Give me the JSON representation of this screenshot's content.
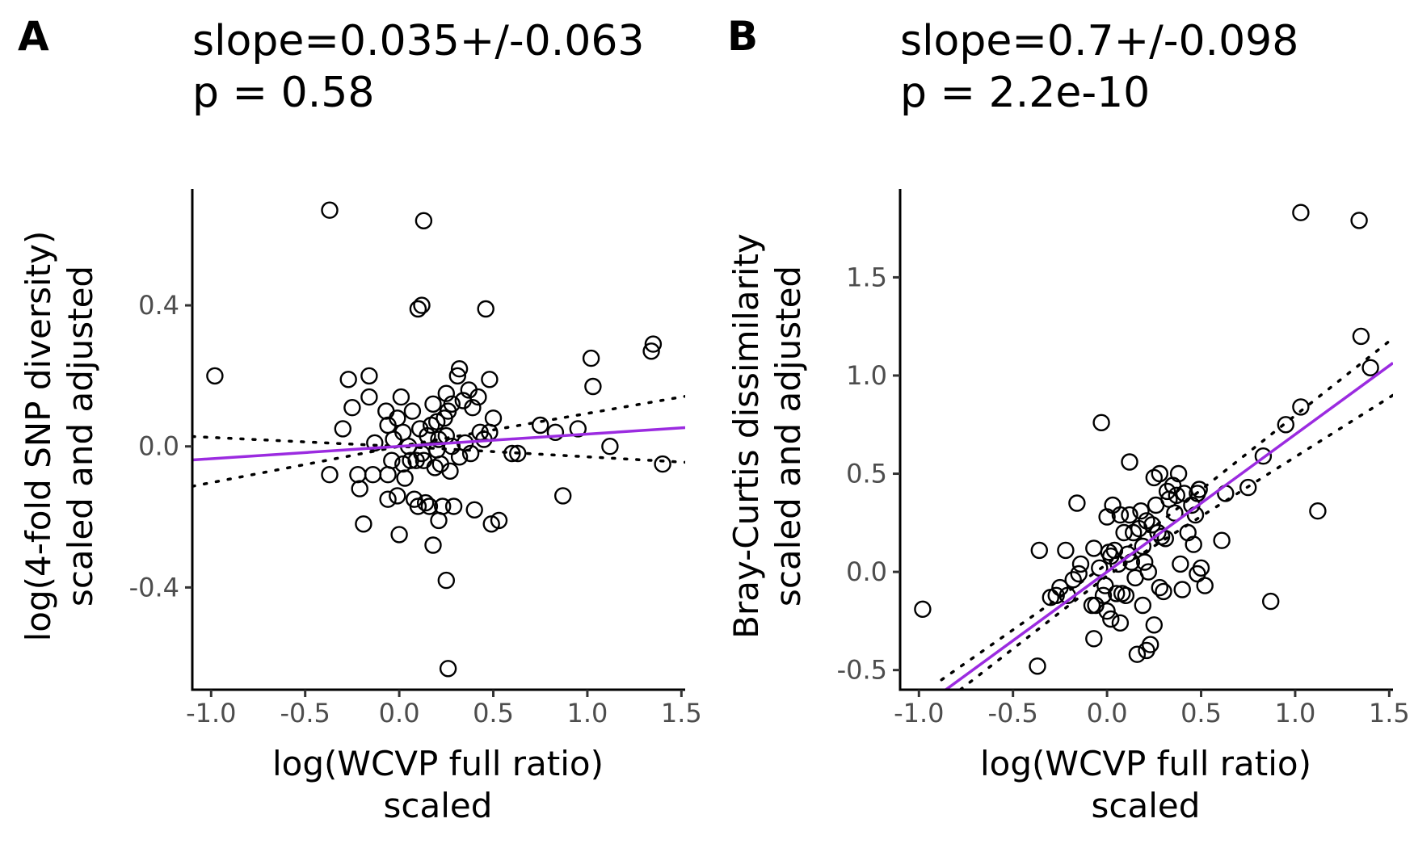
{
  "colors": {
    "fit": "#9b2be0",
    "points": "#000000",
    "ci": "#000000"
  },
  "chart_data": [
    {
      "type": "scatter",
      "panel": "A",
      "title_lines": [
        "slope=0.035+/-0.063",
        "p = 0.58"
      ],
      "xlabel_lines": [
        "log(WCVP full ratio)",
        "scaled"
      ],
      "ylabel_lines": [
        "log(4-fold SNP diversity)",
        "scaled and adjusted"
      ],
      "xlim": [
        -1.1,
        1.52
      ],
      "ylim": [
        -0.69,
        0.73
      ],
      "xticks": [
        -1.0,
        -0.5,
        0.0,
        0.5,
        1.0,
        1.5
      ],
      "xtick_labels": [
        "-1.0",
        "-0.5",
        "0.0",
        "0.5",
        "1.0",
        "1.5"
      ],
      "yticks": [
        -0.4,
        0.0,
        0.4
      ],
      "ytick_labels": [
        "-0.4",
        "0.0",
        "0.4"
      ],
      "grid": false,
      "fit": {
        "slope": 0.035,
        "intercept": 0.0
      },
      "ci": {
        "upper": [
          [
            -1.1,
            0.028
          ],
          [
            0.0,
            0.0
          ],
          [
            1.52,
            0.142
          ]
        ],
        "lower": [
          [
            -1.1,
            -0.113
          ],
          [
            0.0,
            0.0
          ],
          [
            1.52,
            -0.045
          ]
        ]
      },
      "points": [
        [
          -0.98,
          0.2
        ],
        [
          -0.37,
          0.67
        ],
        [
          -0.37,
          -0.08
        ],
        [
          -0.3,
          0.05
        ],
        [
          -0.27,
          0.19
        ],
        [
          -0.25,
          0.11
        ],
        [
          -0.22,
          -0.08
        ],
        [
          -0.21,
          -0.12
        ],
        [
          -0.19,
          -0.22
        ],
        [
          -0.16,
          0.2
        ],
        [
          -0.16,
          0.14
        ],
        [
          -0.14,
          -0.08
        ],
        [
          -0.13,
          0.01
        ],
        [
          -0.07,
          0.1
        ],
        [
          -0.06,
          0.06
        ],
        [
          -0.06,
          -0.08
        ],
        [
          -0.06,
          -0.15
        ],
        [
          -0.04,
          -0.04
        ],
        [
          -0.03,
          0.02
        ],
        [
          -0.01,
          0.08
        ],
        [
          -0.01,
          -0.14
        ],
        [
          0.0,
          -0.25
        ],
        [
          0.01,
          0.14
        ],
        [
          0.02,
          0.04
        ],
        [
          0.02,
          -0.05
        ],
        [
          0.03,
          -0.09
        ],
        [
          0.05,
          0.0
        ],
        [
          0.06,
          -0.04
        ],
        [
          0.07,
          0.1
        ],
        [
          0.08,
          -0.15
        ],
        [
          0.09,
          -0.04
        ],
        [
          0.1,
          0.39
        ],
        [
          0.1,
          -0.17
        ],
        [
          0.11,
          0.05
        ],
        [
          0.12,
          0.4
        ],
        [
          0.12,
          -0.02
        ],
        [
          0.13,
          0.64
        ],
        [
          0.13,
          -0.04
        ],
        [
          0.14,
          -0.16
        ],
        [
          0.15,
          0.03
        ],
        [
          0.16,
          -0.17
        ],
        [
          0.17,
          0.06
        ],
        [
          0.18,
          0.12
        ],
        [
          0.18,
          -0.28
        ],
        [
          0.19,
          -0.06
        ],
        [
          0.2,
          0.07
        ],
        [
          0.2,
          -0.01
        ],
        [
          0.21,
          0.02
        ],
        [
          0.21,
          -0.21
        ],
        [
          0.22,
          -0.05
        ],
        [
          0.23,
          -0.17
        ],
        [
          0.24,
          0.08
        ],
        [
          0.25,
          0.15
        ],
        [
          0.25,
          0.03
        ],
        [
          0.25,
          -0.38
        ],
        [
          0.26,
          -0.63
        ],
        [
          0.26,
          0.1
        ],
        [
          0.27,
          -0.07
        ],
        [
          0.28,
          0.12
        ],
        [
          0.28,
          0.0
        ],
        [
          0.29,
          -0.17
        ],
        [
          0.31,
          0.2
        ],
        [
          0.32,
          0.22
        ],
        [
          0.32,
          -0.03
        ],
        [
          0.34,
          0.13
        ],
        [
          0.35,
          0.01
        ],
        [
          0.37,
          0.16
        ],
        [
          0.38,
          -0.02
        ],
        [
          0.39,
          0.11
        ],
        [
          0.4,
          -0.18
        ],
        [
          0.42,
          0.14
        ],
        [
          0.43,
          0.04
        ],
        [
          0.45,
          0.02
        ],
        [
          0.46,
          0.39
        ],
        [
          0.48,
          0.04
        ],
        [
          0.48,
          0.19
        ],
        [
          0.49,
          -0.22
        ],
        [
          0.5,
          0.08
        ],
        [
          0.53,
          -0.21
        ],
        [
          0.6,
          -0.02
        ],
        [
          0.63,
          -0.02
        ],
        [
          0.75,
          0.06
        ],
        [
          0.83,
          0.04
        ],
        [
          0.87,
          -0.14
        ],
        [
          0.95,
          0.05
        ],
        [
          1.02,
          0.25
        ],
        [
          1.03,
          0.17
        ],
        [
          1.12,
          0.0
        ],
        [
          1.34,
          0.27
        ],
        [
          1.35,
          0.29
        ],
        [
          1.4,
          -0.05
        ]
      ]
    },
    {
      "type": "scatter",
      "panel": "B",
      "title_lines": [
        "slope=0.7+/-0.098",
        "p = 2.2e-10"
      ],
      "xlabel_lines": [
        "log(WCVP full ratio)",
        "scaled"
      ],
      "ylabel_lines": [
        "Bray-Curtis dissimilarity",
        "scaled and adjusted"
      ],
      "xlim": [
        -1.1,
        1.52
      ],
      "ylim": [
        -0.6,
        1.95
      ],
      "xticks": [
        -1.0,
        -0.5,
        0.0,
        0.5,
        1.0,
        1.5
      ],
      "xtick_labels": [
        "-1.0",
        "-0.5",
        "0.0",
        "0.5",
        "1.0",
        "1.5"
      ],
      "yticks": [
        -0.5,
        0.0,
        0.5,
        1.0,
        1.5
      ],
      "ytick_labels": [
        "-0.5",
        "0.0",
        "0.5",
        "1.0",
        "1.5"
      ],
      "grid": false,
      "fit": {
        "slope": 0.7,
        "intercept": 0.0
      },
      "ci": {
        "upper": [
          [
            -0.88,
            -0.55
          ],
          [
            0.0,
            0.04
          ],
          [
            1.52,
            1.19
          ]
        ],
        "lower": [
          [
            -0.78,
            -0.6
          ],
          [
            0.0,
            -0.02
          ],
          [
            1.52,
            0.9
          ]
        ]
      },
      "points": [
        [
          -0.98,
          -0.19
        ],
        [
          -0.37,
          -0.48
        ],
        [
          -0.36,
          0.11
        ],
        [
          -0.3,
          -0.13
        ],
        [
          -0.27,
          -0.12
        ],
        [
          -0.25,
          -0.08
        ],
        [
          -0.22,
          0.11
        ],
        [
          -0.21,
          -0.12
        ],
        [
          -0.18,
          -0.04
        ],
        [
          -0.16,
          0.35
        ],
        [
          -0.15,
          -0.01
        ],
        [
          -0.14,
          0.04
        ],
        [
          -0.08,
          -0.17
        ],
        [
          -0.07,
          -0.34
        ],
        [
          -0.07,
          0.12
        ],
        [
          -0.06,
          -0.17
        ],
        [
          -0.04,
          0.02
        ],
        [
          -0.03,
          0.76
        ],
        [
          -0.02,
          -0.12
        ],
        [
          -0.01,
          -0.07
        ],
        [
          0.0,
          0.28
        ],
        [
          0.0,
          -0.2
        ],
        [
          0.01,
          0.1
        ],
        [
          0.02,
          0.08
        ],
        [
          0.02,
          -0.24
        ],
        [
          0.03,
          0.34
        ],
        [
          0.04,
          0.11
        ],
        [
          0.05,
          -0.11
        ],
        [
          0.06,
          0.04
        ],
        [
          0.07,
          0.29
        ],
        [
          0.07,
          -0.26
        ],
        [
          0.08,
          -0.11
        ],
        [
          0.09,
          0.2
        ],
        [
          0.1,
          -0.12
        ],
        [
          0.11,
          0.09
        ],
        [
          0.12,
          0.56
        ],
        [
          0.12,
          0.29
        ],
        [
          0.13,
          0.05
        ],
        [
          0.14,
          0.2
        ],
        [
          0.15,
          -0.03
        ],
        [
          0.16,
          -0.42
        ],
        [
          0.17,
          0.22
        ],
        [
          0.18,
          0.31
        ],
        [
          0.19,
          0.13
        ],
        [
          0.19,
          -0.17
        ],
        [
          0.2,
          0.05
        ],
        [
          0.21,
          0.26
        ],
        [
          0.21,
          -0.4
        ],
        [
          0.22,
          0.0
        ],
        [
          0.23,
          -0.37
        ],
        [
          0.24,
          0.24
        ],
        [
          0.25,
          0.48
        ],
        [
          0.25,
          -0.27
        ],
        [
          0.26,
          0.34
        ],
        [
          0.27,
          0.2
        ],
        [
          0.28,
          0.5
        ],
        [
          0.28,
          -0.08
        ],
        [
          0.29,
          0.18
        ],
        [
          0.3,
          -0.1
        ],
        [
          0.31,
          0.17
        ],
        [
          0.32,
          0.41
        ],
        [
          0.33,
          0.37
        ],
        [
          0.35,
          0.44
        ],
        [
          0.36,
          0.3
        ],
        [
          0.37,
          0.39
        ],
        [
          0.38,
          0.5
        ],
        [
          0.39,
          0.04
        ],
        [
          0.4,
          -0.09
        ],
        [
          0.41,
          0.4
        ],
        [
          0.43,
          0.2
        ],
        [
          0.45,
          0.34
        ],
        [
          0.46,
          0.14
        ],
        [
          0.47,
          0.29
        ],
        [
          0.48,
          0.4
        ],
        [
          0.48,
          -0.01
        ],
        [
          0.49,
          0.42
        ],
        [
          0.5,
          0.02
        ],
        [
          0.52,
          -0.07
        ],
        [
          0.61,
          0.16
        ],
        [
          0.63,
          0.4
        ],
        [
          0.75,
          0.43
        ],
        [
          0.83,
          0.59
        ],
        [
          0.87,
          -0.15
        ],
        [
          0.95,
          0.75
        ],
        [
          1.03,
          0.84
        ],
        [
          1.03,
          1.83
        ],
        [
          1.12,
          0.31
        ],
        [
          1.34,
          1.79
        ],
        [
          1.35,
          1.2
        ],
        [
          1.4,
          1.04
        ]
      ]
    }
  ]
}
